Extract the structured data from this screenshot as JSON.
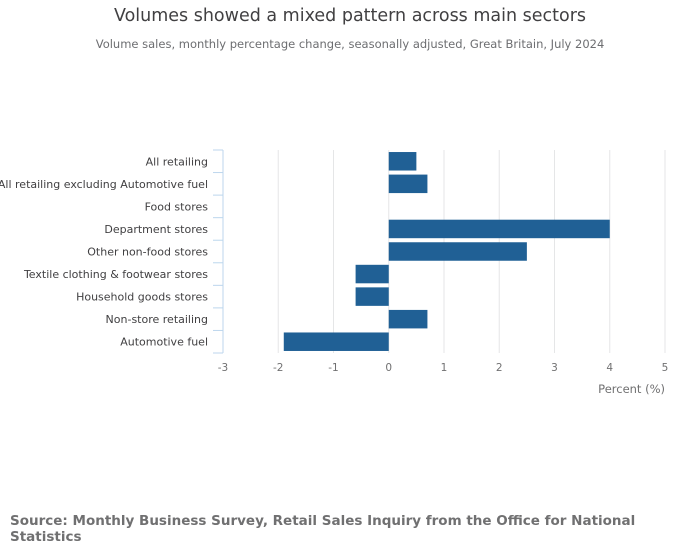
{
  "title": "Volumes showed a mixed pattern across main sectors",
  "subtitle": "Volume sales, monthly percentage change, seasonally adjusted, Great Britain, July 2024",
  "source": "Source: Monthly Business Survey, Retail Sales Inquiry from the Office for National Statistics",
  "colors": {
    "bar": "#206095",
    "grid": "#e5e6e7",
    "axis_text": "#707071",
    "label_text": "#414042",
    "tick_line": "#bcd6ed"
  },
  "chart_data": {
    "type": "bar",
    "orientation": "horizontal",
    "title": "Volumes showed a mixed pattern across main sectors",
    "subtitle": "Volume sales, monthly percentage change, seasonally adjusted, Great Britain, July 2024",
    "xlabel": "Percent (%)",
    "ylabel": "",
    "xlim": [
      -3,
      5
    ],
    "xticks": [
      -3,
      -2,
      -1,
      0,
      1,
      2,
      3,
      4,
      5
    ],
    "grid": true,
    "categories": [
      "All retailing",
      "All retailing excluding Automotive fuel",
      "Food stores",
      "Department stores",
      "Other non-food stores",
      "Textile clothing & footwear stores",
      "Household goods stores",
      "Non-store retailing",
      "Automotive fuel"
    ],
    "values": [
      0.5,
      0.7,
      0.0,
      4.0,
      2.5,
      -0.6,
      -0.6,
      0.7,
      -1.9
    ]
  }
}
